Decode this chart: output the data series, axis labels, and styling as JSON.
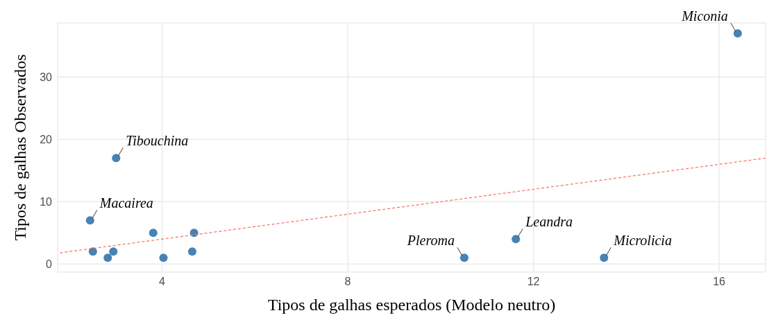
{
  "chart_data": {
    "type": "scatter",
    "xlabel": "Tipos de galhas esperados (Modelo neutro)",
    "ylabel": "Tipos de galhas Observados",
    "xlim": [
      1.75,
      17
    ],
    "ylim": [
      -1.3,
      38.7
    ],
    "xticks": [
      4,
      8,
      12,
      16
    ],
    "yticks": [
      0,
      10,
      20,
      30
    ],
    "grid": true,
    "marker": "circle",
    "series": [
      {
        "type": "scatter",
        "color": "#4682b4",
        "x": [
          16.4,
          3.01,
          2.45,
          2.51,
          2.83,
          2.95,
          3.81,
          4.03,
          4.65,
          4.69,
          10.51,
          11.62,
          13.52
        ],
        "values": [
          37,
          17,
          7,
          2,
          1,
          2,
          5,
          1,
          2,
          5,
          1,
          4,
          1
        ]
      },
      {
        "type": "line",
        "color": "#f8766d",
        "line_style": "dashed",
        "marker": "none",
        "x": [
          1.8,
          17
        ],
        "values": [
          1.8,
          17
        ]
      }
    ],
    "annotations": [
      {
        "text": "Miconia",
        "x": 16.4,
        "y": 37
      },
      {
        "text": "Tibouchina",
        "x": 3.01,
        "y": 17
      },
      {
        "text": "Macairea",
        "x": 2.45,
        "y": 7
      },
      {
        "text": "Pleroma",
        "x": 10.51,
        "y": 1
      },
      {
        "text": "Leandra",
        "x": 11.62,
        "y": 4
      },
      {
        "text": "Microlicia",
        "x": 13.52,
        "y": 1
      }
    ]
  }
}
